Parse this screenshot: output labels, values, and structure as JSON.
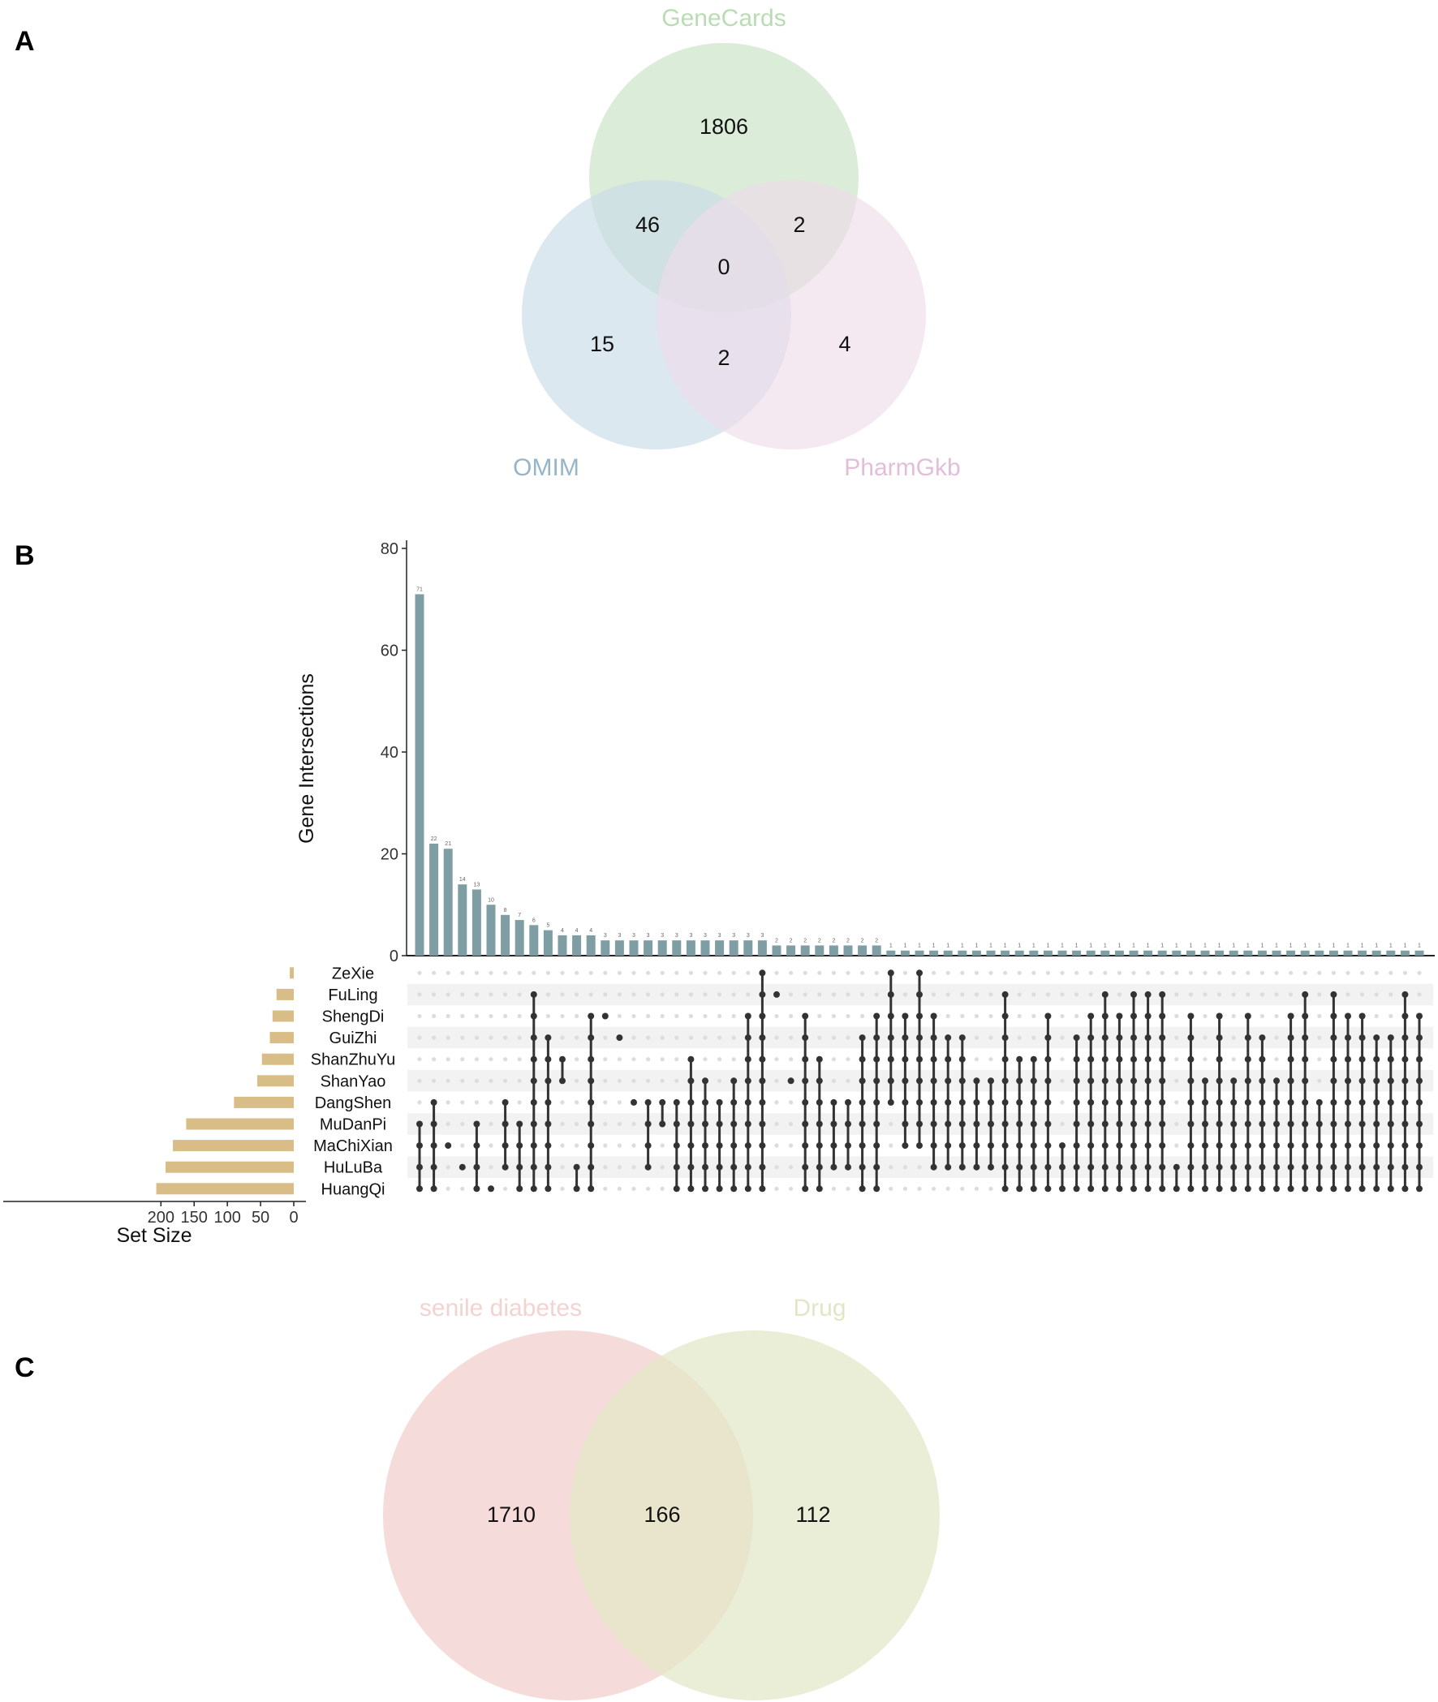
{
  "colors": {
    "genecards": "#cfe6cc",
    "omim": "#c9dbe6",
    "pharmgkb": "#eedcea",
    "genecards_text": "#b9dcb3",
    "omim_text": "#96b5c9",
    "pharmgkb_text": "#e2bfd9",
    "intersect_bar": "#7f9ea4",
    "set_bar": "#d9bd86",
    "dot_on": "#333333",
    "dot_off": "#dddddd",
    "stripe": "#f2f2f2",
    "senile": "#f5d5d5",
    "drug": "#e4e8c8",
    "senile_text": "#f3d3d2",
    "drug_text": "#e3e6c6"
  },
  "panel_labels": {
    "a": "A",
    "b": "B",
    "c": "C"
  },
  "chart_data": [
    {
      "type": "venn",
      "panel": "A",
      "sets": [
        "GeneCards",
        "OMIM",
        "PharmGkb"
      ],
      "regions": {
        "genecards_only": "1806",
        "omim_only": "15",
        "pharmgkb_only": "4",
        "genecards_omim": "46",
        "genecards_pharmgkb": "2",
        "omim_pharmgkb": "2",
        "all_three": "0"
      }
    },
    {
      "type": "upset",
      "panel": "B",
      "ylabel": "Gene Intersections",
      "yticks": [
        "0",
        "20",
        "40",
        "60",
        "80"
      ],
      "ylim": [
        0,
        80
      ],
      "set_size_label": "Set Size",
      "set_size_ticks": [
        200,
        150,
        100,
        50,
        0
      ],
      "sets": [
        "ZeXie",
        "FuLing",
        "ShengDi",
        "GuiZhi",
        "ShanZhuYu",
        "ShanYao",
        "DangShen",
        "MuDanPi",
        "MaChiXian",
        "HuLuBa",
        "HuangQi"
      ],
      "set_sizes": [
        6,
        26,
        32,
        36,
        48,
        55,
        90,
        162,
        182,
        193,
        207
      ],
      "intersection_sizes": [
        71,
        22,
        21,
        14,
        13,
        10,
        8,
        7,
        6,
        5,
        4,
        4,
        4,
        3,
        3,
        3,
        3,
        3,
        3,
        3,
        3,
        3,
        3,
        3,
        3,
        2,
        2,
        2,
        2,
        2,
        2,
        2,
        2,
        1,
        1,
        1,
        1,
        1,
        1,
        1,
        1,
        1,
        1,
        1,
        1,
        1,
        1,
        1,
        1,
        1,
        1,
        1,
        1,
        1,
        1,
        1,
        1,
        1,
        1,
        1,
        1,
        1,
        1,
        1,
        1,
        1,
        1,
        1,
        1,
        1,
        1
      ],
      "intersection_members": [
        [
          "HuangQi",
          "HuLuBa",
          "MaChiXian",
          "MuDanPi"
        ],
        [
          "HuangQi",
          "HuLuBa",
          "MaChiXian",
          "MuDanPi",
          "DangShen"
        ],
        [
          "MaChiXian"
        ],
        [
          "HuLuBa"
        ],
        [
          "HuangQi",
          "HuLuBa",
          "MaChiXian",
          "MuDanPi"
        ],
        [
          "HuangQi"
        ],
        [
          "HuLuBa",
          "MaChiXian",
          "MuDanPi",
          "DangShen"
        ],
        [
          "HuangQi",
          "HuLuBa",
          "MaChiXian",
          "MuDanPi"
        ],
        [
          "HuangQi",
          "HuLuBa",
          "MaChiXian",
          "MuDanPi",
          "DangShen",
          "ShanYao",
          "ShanZhuYu",
          "GuiZhi",
          "ShengDi",
          "FuLing"
        ],
        [
          "HuangQi",
          "HuLuBa",
          "MaChiXian",
          "MuDanPi",
          "DangShen",
          "ShanYao",
          "ShanZhuYu",
          "GuiZhi"
        ],
        [
          "ShanYao",
          "ShanZhuYu"
        ],
        [
          "HuangQi",
          "HuLuBa"
        ],
        [
          "HuangQi",
          "HuLuBa",
          "MaChiXian",
          "MuDanPi",
          "DangShen",
          "ShanYao",
          "ShanZhuYu",
          "GuiZhi",
          "ShengDi"
        ],
        [
          "ShengDi"
        ],
        [
          "GuiZhi"
        ],
        [
          "DangShen"
        ],
        [
          "HuLuBa",
          "MaChiXian",
          "MuDanPi",
          "DangShen"
        ],
        [
          "MuDanPi",
          "DangShen"
        ],
        [
          "HuangQi",
          "HuLuBa",
          "MaChiXian",
          "MuDanPi",
          "DangShen"
        ],
        [
          "HuangQi",
          "HuLuBa",
          "MaChiXian",
          "MuDanPi",
          "DangShen",
          "ShanYao",
          "ShanZhuYu"
        ],
        [
          "HuangQi",
          "HuLuBa",
          "MaChiXian",
          "MuDanPi",
          "DangShen",
          "ShanYao"
        ],
        [
          "HuangQi",
          "HuLuBa",
          "MaChiXian",
          "MuDanPi",
          "DangShen"
        ],
        [
          "HuangQi",
          "HuLuBa",
          "MaChiXian",
          "MuDanPi",
          "DangShen",
          "ShanYao"
        ],
        [
          "HuangQi",
          "HuLuBa",
          "MaChiXian",
          "MuDanPi",
          "DangShen",
          "ShanYao",
          "ShanZhuYu",
          "GuiZhi",
          "ShengDi"
        ],
        [
          "HuangQi",
          "HuLuBa",
          "MaChiXian",
          "MuDanPi",
          "DangShen",
          "ShanYao",
          "ShanZhuYu",
          "GuiZhi",
          "ShengDi",
          "FuLing",
          "ZeXie"
        ],
        [
          "FuLing"
        ],
        [
          "ShanYao"
        ],
        [
          "HuangQi",
          "HuLuBa",
          "MaChiXian",
          "MuDanPi",
          "DangShen",
          "ShanYao",
          "ShanZhuYu",
          "GuiZhi",
          "ShengDi"
        ],
        [
          "HuangQi",
          "HuLuBa",
          "MaChiXian",
          "MuDanPi",
          "DangShen",
          "ShanYao",
          "ShanZhuYu"
        ],
        [
          "HuLuBa",
          "MaChiXian",
          "MuDanPi",
          "DangShen"
        ],
        [
          "HuLuBa",
          "MaChiXian",
          "MuDanPi",
          "DangShen"
        ],
        [
          "HuangQi",
          "HuLuBa",
          "MaChiXian",
          "MuDanPi",
          "DangShen",
          "ShanYao",
          "ShanZhuYu",
          "GuiZhi"
        ],
        [
          "HuangQi",
          "HuLuBa",
          "MaChiXian",
          "MuDanPi",
          "DangShen",
          "ShanYao",
          "ShanZhuYu",
          "GuiZhi",
          "ShengDi"
        ],
        [
          "ZeXie",
          "FuLing",
          "ShengDi",
          "GuiZhi",
          "ShanZhuYu",
          "ShanYao",
          "DangShen"
        ],
        [
          "MaChiXian",
          "MuDanPi",
          "DangShen",
          "ShanYao",
          "ShanZhuYu",
          "GuiZhi",
          "ShengDi"
        ],
        [
          "ZeXie",
          "FuLing",
          "ShengDi",
          "GuiZhi",
          "ShanZhuYu",
          "ShanYao",
          "DangShen",
          "MuDanPi",
          "MaChiXian"
        ],
        [
          "HuLuBa",
          "MaChiXian",
          "MuDanPi",
          "DangShen",
          "ShanYao",
          "ShanZhuYu",
          "GuiZhi",
          "ShengDi"
        ],
        [
          "HuLuBa",
          "MaChiXian",
          "MuDanPi",
          "DangShen",
          "ShanYao",
          "ShanZhuYu",
          "GuiZhi"
        ],
        [
          "HuLuBa",
          "MaChiXian",
          "MuDanPi",
          "DangShen",
          "ShanYao",
          "ShanZhuYu",
          "GuiZhi"
        ],
        [
          "HuLuBa",
          "MaChiXian",
          "MuDanPi",
          "DangShen",
          "ShanYao"
        ],
        [
          "HuLuBa",
          "MaChiXian",
          "MuDanPi",
          "DangShen",
          "ShanYao"
        ],
        [
          "HuangQi",
          "HuLuBa",
          "MaChiXian",
          "MuDanPi",
          "DangShen",
          "ShanYao",
          "ShanZhuYu",
          "GuiZhi",
          "ShengDi",
          "FuLing"
        ],
        [
          "HuangQi",
          "HuLuBa",
          "MaChiXian",
          "MuDanPi",
          "DangShen",
          "ShanYao",
          "ShanZhuYu"
        ],
        [
          "HuangQi",
          "HuLuBa",
          "MaChiXian",
          "MuDanPi",
          "DangShen",
          "ShanYao",
          "ShanZhuYu"
        ],
        [
          "HuangQi",
          "HuLuBa",
          "MaChiXian",
          "MuDanPi",
          "DangShen",
          "ShanYao",
          "ShanZhuYu",
          "GuiZhi",
          "ShengDi"
        ],
        [
          "HuangQi",
          "HuLuBa",
          "MaChiXian"
        ],
        [
          "HuangQi",
          "HuLuBa",
          "MaChiXian",
          "MuDanPi",
          "DangShen",
          "ShanYao",
          "ShanZhuYu",
          "GuiZhi"
        ],
        [
          "HuangQi",
          "HuLuBa",
          "MaChiXian",
          "MuDanPi",
          "DangShen",
          "ShanYao",
          "ShanZhuYu",
          "GuiZhi",
          "ShengDi"
        ],
        [
          "HuangQi",
          "HuLuBa",
          "MaChiXian",
          "MuDanPi",
          "DangShen",
          "ShanYao",
          "ShanZhuYu",
          "GuiZhi",
          "ShengDi",
          "FuLing"
        ],
        [
          "HuangQi",
          "HuLuBa",
          "MaChiXian",
          "MuDanPi",
          "DangShen",
          "ShanYao",
          "ShanZhuYu",
          "GuiZhi",
          "ShengDi"
        ],
        [
          "HuangQi",
          "HuLuBa",
          "MaChiXian",
          "MuDanPi",
          "DangShen",
          "ShanYao",
          "ShanZhuYu",
          "GuiZhi",
          "ShengDi",
          "FuLing"
        ],
        [
          "HuangQi",
          "HuLuBa",
          "MaChiXian",
          "MuDanPi",
          "DangShen",
          "ShanYao",
          "ShanZhuYu",
          "GuiZhi",
          "ShengDi",
          "FuLing"
        ],
        [
          "HuangQi",
          "HuLuBa",
          "MaChiXian",
          "MuDanPi",
          "DangShen",
          "ShanYao",
          "ShanZhuYu",
          "GuiZhi",
          "ShengDi",
          "FuLing"
        ],
        [
          "HuangQi",
          "HuLuBa"
        ],
        [
          "HuangQi",
          "HuLuBa",
          "MaChiXian",
          "MuDanPi",
          "DangShen",
          "ShanYao",
          "ShanZhuYu",
          "GuiZhi",
          "ShengDi"
        ],
        [
          "HuangQi",
          "HuLuBa",
          "MaChiXian",
          "MuDanPi",
          "DangShen",
          "ShanYao"
        ],
        [
          "HuangQi",
          "HuLuBa",
          "MaChiXian",
          "MuDanPi",
          "DangShen",
          "ShanYao",
          "ShanZhuYu",
          "GuiZhi",
          "ShengDi"
        ],
        [
          "HuangQi",
          "HuLuBa",
          "MaChiXian",
          "MuDanPi",
          "DangShen",
          "ShanYao"
        ],
        [
          "HuangQi",
          "HuLuBa",
          "MaChiXian",
          "MuDanPi",
          "DangShen",
          "ShanYao",
          "ShanZhuYu",
          "GuiZhi",
          "ShengDi"
        ],
        [
          "HuangQi",
          "HuLuBa",
          "MaChiXian",
          "MuDanPi",
          "DangShen",
          "ShanYao",
          "ShanZhuYu",
          "GuiZhi"
        ],
        [
          "HuangQi",
          "HuLuBa",
          "MaChiXian",
          "MuDanPi",
          "DangShen",
          "ShanYao"
        ],
        [
          "HuangQi",
          "HuLuBa",
          "MaChiXian",
          "MuDanPi",
          "DangShen",
          "ShanYao",
          "ShanZhuYu",
          "GuiZhi",
          "ShengDi"
        ],
        [
          "HuangQi",
          "HuLuBa",
          "MaChiXian",
          "MuDanPi",
          "DangShen",
          "ShanYao",
          "ShanZhuYu",
          "GuiZhi",
          "ShengDi",
          "FuLing"
        ],
        [
          "HuangQi",
          "HuLuBa",
          "MaChiXian",
          "MuDanPi",
          "DangShen"
        ],
        [
          "HuangQi",
          "HuLuBa",
          "MaChiXian",
          "MuDanPi",
          "DangShen",
          "ShanYao",
          "ShanZhuYu",
          "GuiZhi",
          "ShengDi",
          "FuLing"
        ],
        [
          "HuangQi",
          "HuLuBa",
          "MaChiXian",
          "MuDanPi",
          "DangShen",
          "ShanYao",
          "ShanZhuYu",
          "GuiZhi",
          "ShengDi"
        ],
        [
          "HuangQi",
          "HuLuBa",
          "MaChiXian",
          "MuDanPi",
          "DangShen",
          "ShanYao",
          "ShanZhuYu",
          "GuiZhi",
          "ShengDi"
        ],
        [
          "HuangQi",
          "HuLuBa",
          "MaChiXian",
          "MuDanPi",
          "DangShen",
          "ShanYao",
          "ShanZhuYu",
          "GuiZhi"
        ],
        [
          "HuangQi",
          "HuLuBa",
          "MaChiXian",
          "MuDanPi",
          "DangShen",
          "ShanYao",
          "ShanZhuYu",
          "GuiZhi"
        ],
        [
          "HuangQi",
          "HuLuBa",
          "MaChiXian",
          "MuDanPi",
          "DangShen",
          "ShanYao",
          "ShanZhuYu",
          "GuiZhi",
          "ShengDi",
          "FuLing"
        ],
        [
          "HuangQi",
          "HuLuBa",
          "MaChiXian",
          "MuDanPi",
          "DangShen",
          "ShanYao",
          "ShanZhuYu",
          "GuiZhi",
          "ShengDi"
        ]
      ]
    },
    {
      "type": "venn",
      "panel": "C",
      "sets": [
        "senile diabetes",
        "Drug"
      ],
      "regions": {
        "senile_only": "1710",
        "both": "166",
        "drug_only": "112"
      }
    }
  ]
}
